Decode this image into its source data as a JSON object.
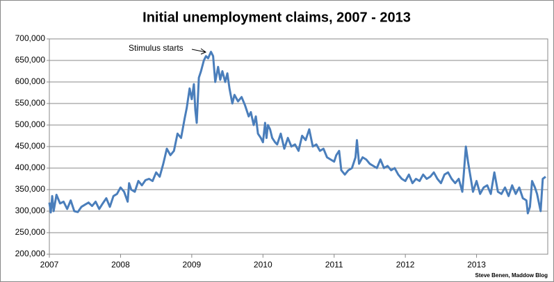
{
  "chart_data": {
    "type": "line",
    "title": "Initial unemployment claims, 2007 - 2013",
    "annotation": "Stimulus starts",
    "source": "Steve Benen, Maddow Blog",
    "color": "#4a7ebb",
    "grid": true,
    "xlim": [
      2007,
      2014
    ],
    "xticks": [
      2007,
      2008,
      2009,
      2010,
      2011,
      2012,
      2013
    ],
    "ylim": [
      200000,
      700000
    ],
    "yticks": [
      {
        "value": 200000,
        "label": "200,000"
      },
      {
        "value": 250000,
        "label": "250,000"
      },
      {
        "value": 300000,
        "label": "300,000"
      },
      {
        "value": 350000,
        "label": "350,000"
      },
      {
        "value": 400000,
        "label": "400,000"
      },
      {
        "value": 450000,
        "label": "450,000"
      },
      {
        "value": 500000,
        "label": "500,000"
      },
      {
        "value": 550000,
        "label": "550,000"
      },
      {
        "value": 600000,
        "label": "600,000"
      },
      {
        "value": 650000,
        "label": "650,000"
      },
      {
        "value": 700000,
        "label": "700,000"
      }
    ],
    "x": [
      2007.0,
      2007.02,
      2007.04,
      2007.06,
      2007.1,
      2007.15,
      2007.2,
      2007.25,
      2007.3,
      2007.35,
      2007.4,
      2007.45,
      2007.5,
      2007.55,
      2007.6,
      2007.65,
      2007.7,
      2007.75,
      2007.8,
      2007.85,
      2007.9,
      2007.95,
      2008.0,
      2008.05,
      2008.1,
      2008.12,
      2008.15,
      2008.2,
      2008.25,
      2008.3,
      2008.35,
      2008.4,
      2008.45,
      2008.5,
      2008.55,
      2008.6,
      2008.65,
      2008.7,
      2008.75,
      2008.8,
      2008.85,
      2008.9,
      2008.93,
      2008.97,
      2009.0,
      2009.03,
      2009.05,
      2009.07,
      2009.1,
      2009.13,
      2009.17,
      2009.2,
      2009.23,
      2009.27,
      2009.3,
      2009.33,
      2009.37,
      2009.4,
      2009.43,
      2009.47,
      2009.5,
      2009.53,
      2009.57,
      2009.6,
      2009.65,
      2009.7,
      2009.75,
      2009.8,
      2009.83,
      2009.87,
      2009.9,
      2009.93,
      2009.97,
      2010.0,
      2010.03,
      2010.05,
      2010.07,
      2010.1,
      2010.13,
      2010.17,
      2010.2,
      2010.25,
      2010.3,
      2010.35,
      2010.4,
      2010.45,
      2010.5,
      2010.55,
      2010.6,
      2010.65,
      2010.7,
      2010.75,
      2010.8,
      2010.85,
      2010.9,
      2010.95,
      2011.0,
      2011.03,
      2011.07,
      2011.1,
      2011.15,
      2011.2,
      2011.25,
      2011.3,
      2011.32,
      2011.35,
      2011.4,
      2011.45,
      2011.5,
      2011.55,
      2011.6,
      2011.65,
      2011.7,
      2011.75,
      2011.8,
      2011.85,
      2011.9,
      2011.95,
      2012.0,
      2012.05,
      2012.1,
      2012.15,
      2012.2,
      2012.25,
      2012.3,
      2012.35,
      2012.4,
      2012.45,
      2012.5,
      2012.55,
      2012.6,
      2012.65,
      2012.7,
      2012.75,
      2012.8,
      2012.82,
      2012.85,
      2012.88,
      2012.92,
      2012.95,
      2013.0,
      2013.05,
      2013.1,
      2013.15,
      2013.2,
      2013.25,
      2013.3,
      2013.35,
      2013.4,
      2013.45,
      2013.5,
      2013.55,
      2013.6,
      2013.65,
      2013.7,
      2013.72,
      2013.75,
      2013.78,
      2013.82,
      2013.85,
      2013.9,
      2013.93,
      2013.97
    ],
    "values": [
      320000,
      297000,
      335000,
      300000,
      338000,
      318000,
      322000,
      305000,
      325000,
      300000,
      298000,
      310000,
      315000,
      320000,
      312000,
      322000,
      305000,
      318000,
      330000,
      310000,
      335000,
      340000,
      355000,
      345000,
      322000,
      365000,
      350000,
      345000,
      370000,
      360000,
      372000,
      375000,
      370000,
      390000,
      380000,
      410000,
      445000,
      430000,
      440000,
      480000,
      470000,
      515000,
      540000,
      585000,
      560000,
      595000,
      535000,
      505000,
      610000,
      625000,
      650000,
      660000,
      655000,
      670000,
      660000,
      600000,
      635000,
      605000,
      625000,
      600000,
      620000,
      585000,
      550000,
      570000,
      555000,
      565000,
      545000,
      520000,
      530000,
      500000,
      520000,
      480000,
      470000,
      460000,
      505000,
      470000,
      500000,
      490000,
      470000,
      460000,
      455000,
      480000,
      445000,
      470000,
      450000,
      455000,
      440000,
      475000,
      465000,
      490000,
      450000,
      455000,
      440000,
      445000,
      425000,
      420000,
      415000,
      430000,
      440000,
      395000,
      385000,
      395000,
      400000,
      425000,
      465000,
      410000,
      425000,
      420000,
      410000,
      405000,
      400000,
      420000,
      400000,
      405000,
      395000,
      400000,
      385000,
      375000,
      370000,
      385000,
      365000,
      375000,
      370000,
      385000,
      375000,
      380000,
      390000,
      375000,
      365000,
      385000,
      390000,
      375000,
      365000,
      375000,
      345000,
      385000,
      450000,
      415000,
      375000,
      345000,
      370000,
      340000,
      355000,
      360000,
      340000,
      390000,
      345000,
      340000,
      355000,
      335000,
      360000,
      340000,
      355000,
      330000,
      325000,
      295000,
      310000,
      370000,
      355000,
      340000,
      300000,
      375000,
      380000
    ]
  }
}
